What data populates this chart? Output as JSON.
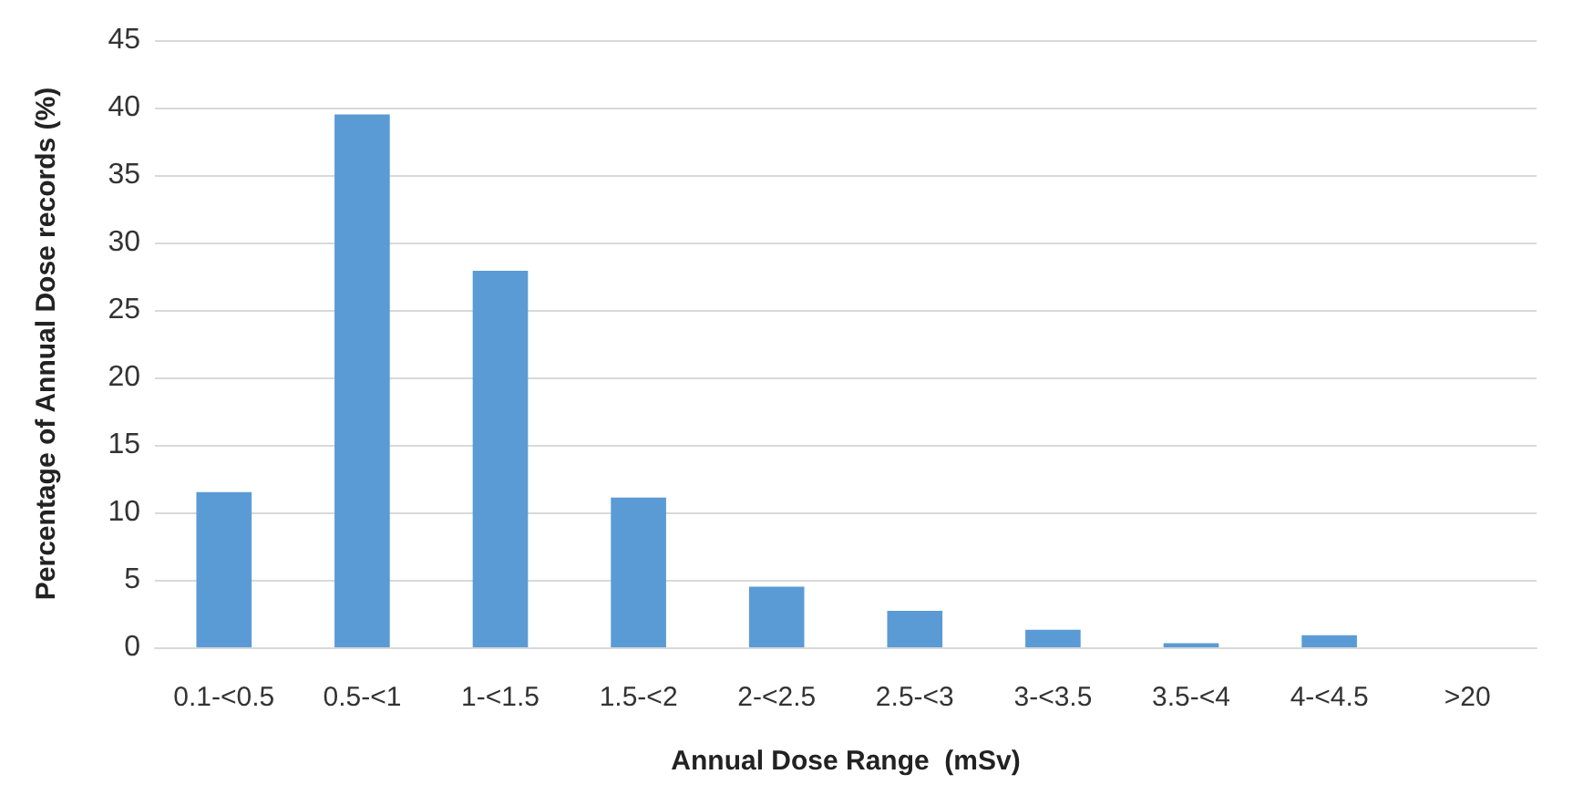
{
  "chart_data": {
    "type": "bar",
    "xlabel": "Annual Dose Range  (mSv)",
    "ylabel": "Percentage of Annual Dose records (%)",
    "categories": [
      "0.1-<0.5",
      "0.5-<1",
      "1-<1.5",
      "1.5-<2",
      "2-<2.5",
      "2.5-<3",
      "3-<3.5",
      "3.5-<4",
      "4-<4.5",
      ">20"
    ],
    "values": [
      11.5,
      39.5,
      27.9,
      11.1,
      4.5,
      2.7,
      1.3,
      0.3,
      0.9,
      0
    ],
    "color": "#5b9bd5",
    "ylim": [
      0,
      45
    ],
    "yticks": [
      0,
      5,
      10,
      15,
      20,
      25,
      30,
      35,
      40,
      45
    ],
    "grid": "y"
  }
}
